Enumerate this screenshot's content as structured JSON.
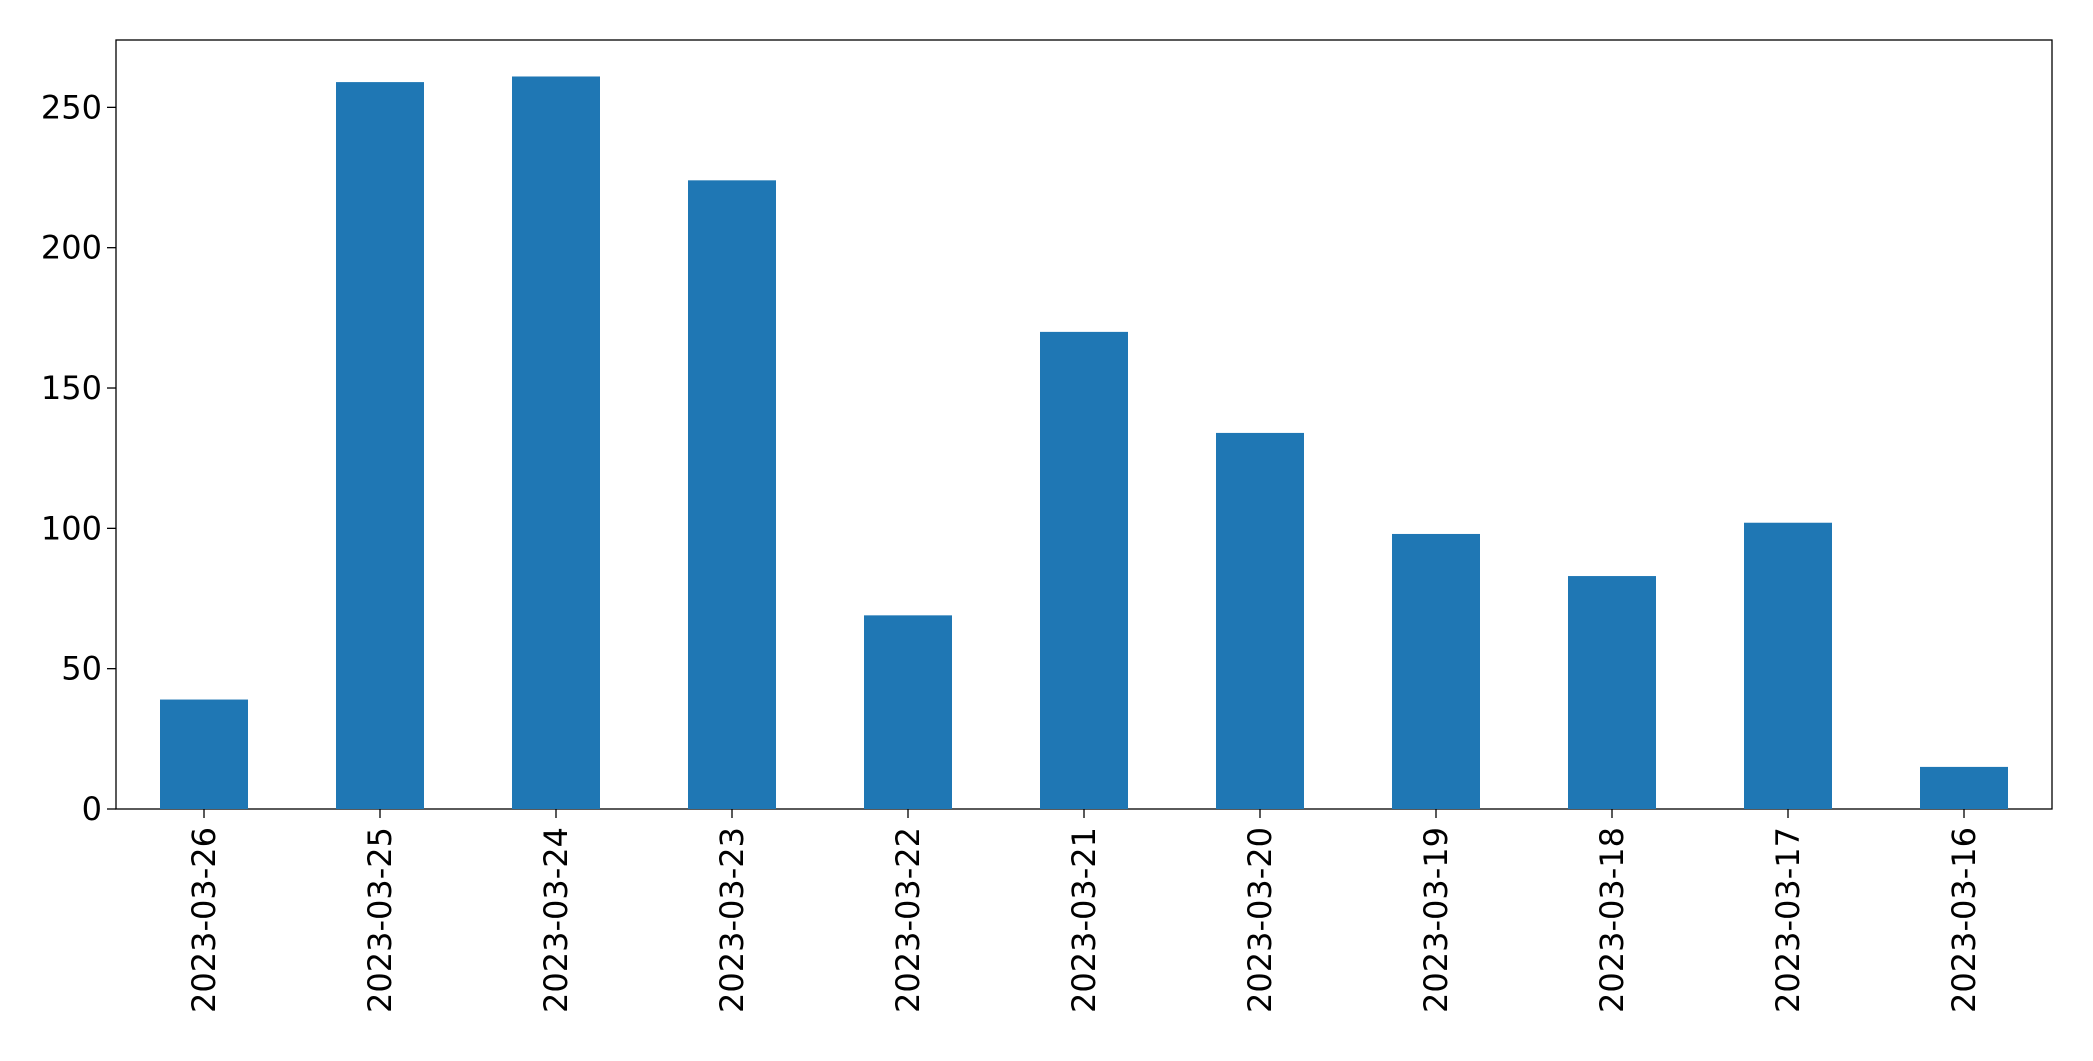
{
  "chart_data": {
    "type": "bar",
    "categories": [
      "2023-03-26",
      "2023-03-25",
      "2023-03-24",
      "2023-03-23",
      "2023-03-22",
      "2023-03-21",
      "2023-03-20",
      "2023-03-19",
      "2023-03-18",
      "2023-03-17",
      "2023-03-16"
    ],
    "values": [
      39,
      259,
      261,
      224,
      69,
      170,
      134,
      98,
      83,
      102,
      15
    ],
    "color": "#1f77b4",
    "ylim": [
      0,
      274
    ],
    "yticks": [
      0,
      50,
      100,
      150,
      200,
      250
    ],
    "grid": false
  }
}
